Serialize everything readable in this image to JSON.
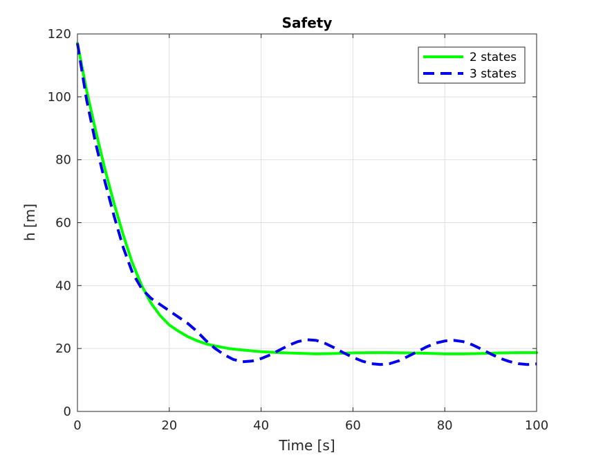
{
  "chart_data": {
    "type": "line",
    "title": "Safety",
    "xlabel": "Time [s]",
    "ylabel": "h [m]",
    "xlim": [
      0,
      100
    ],
    "ylim": [
      0,
      120
    ],
    "xticks": [
      0,
      20,
      40,
      60,
      80,
      100
    ],
    "yticks": [
      0,
      20,
      40,
      60,
      80,
      100,
      120
    ],
    "grid": true,
    "legend": "top-right",
    "series": [
      {
        "name": "2 states",
        "color": "#00ff00",
        "style": "solid",
        "x": [
          0,
          2,
          4,
          6,
          8,
          10,
          12,
          14,
          16,
          18,
          20,
          22,
          24,
          26,
          28,
          30,
          33,
          36,
          40,
          44,
          48,
          52,
          56,
          60,
          64,
          68,
          72,
          76,
          80,
          84,
          88,
          92,
          96,
          100
        ],
        "y": [
          117,
          102,
          89,
          77,
          66,
          56,
          47,
          40,
          34.5,
          30.5,
          27.5,
          25.5,
          23.8,
          22.5,
          21.5,
          20.8,
          20,
          19.5,
          19,
          18.7,
          18.5,
          18.3,
          18.4,
          18.6,
          18.7,
          18.7,
          18.6,
          18.5,
          18.3,
          18.3,
          18.4,
          18.6,
          18.7,
          18.7
        ]
      },
      {
        "name": "3 states",
        "color": "#0000ee",
        "style": "dashed",
        "x": [
          0,
          2,
          4,
          6,
          8,
          10,
          12,
          14,
          16,
          18,
          20,
          22,
          24,
          26,
          28,
          30,
          32,
          34,
          36,
          38,
          40,
          42,
          44,
          46,
          48,
          50,
          52,
          54,
          56,
          58,
          60,
          62,
          64,
          66,
          68,
          70,
          72,
          74,
          76,
          78,
          80,
          82,
          84,
          86,
          88,
          90,
          92,
          94,
          96,
          98,
          100
        ],
        "y": [
          117,
          99,
          85,
          73,
          62,
          52,
          44,
          39,
          36,
          34,
          32,
          30,
          28,
          25.5,
          22.5,
          20,
          18,
          16.5,
          15.8,
          16,
          16.8,
          18,
          19.5,
          21,
          22.2,
          22.8,
          22.6,
          21.6,
          20.2,
          18.6,
          17.2,
          16,
          15.2,
          14.9,
          15.2,
          16.1,
          17.5,
          19,
          20.5,
          21.7,
          22.4,
          22.6,
          22.2,
          21.2,
          19.8,
          18.3,
          16.9,
          15.9,
          15.2,
          14.9,
          15.1
        ]
      }
    ]
  }
}
